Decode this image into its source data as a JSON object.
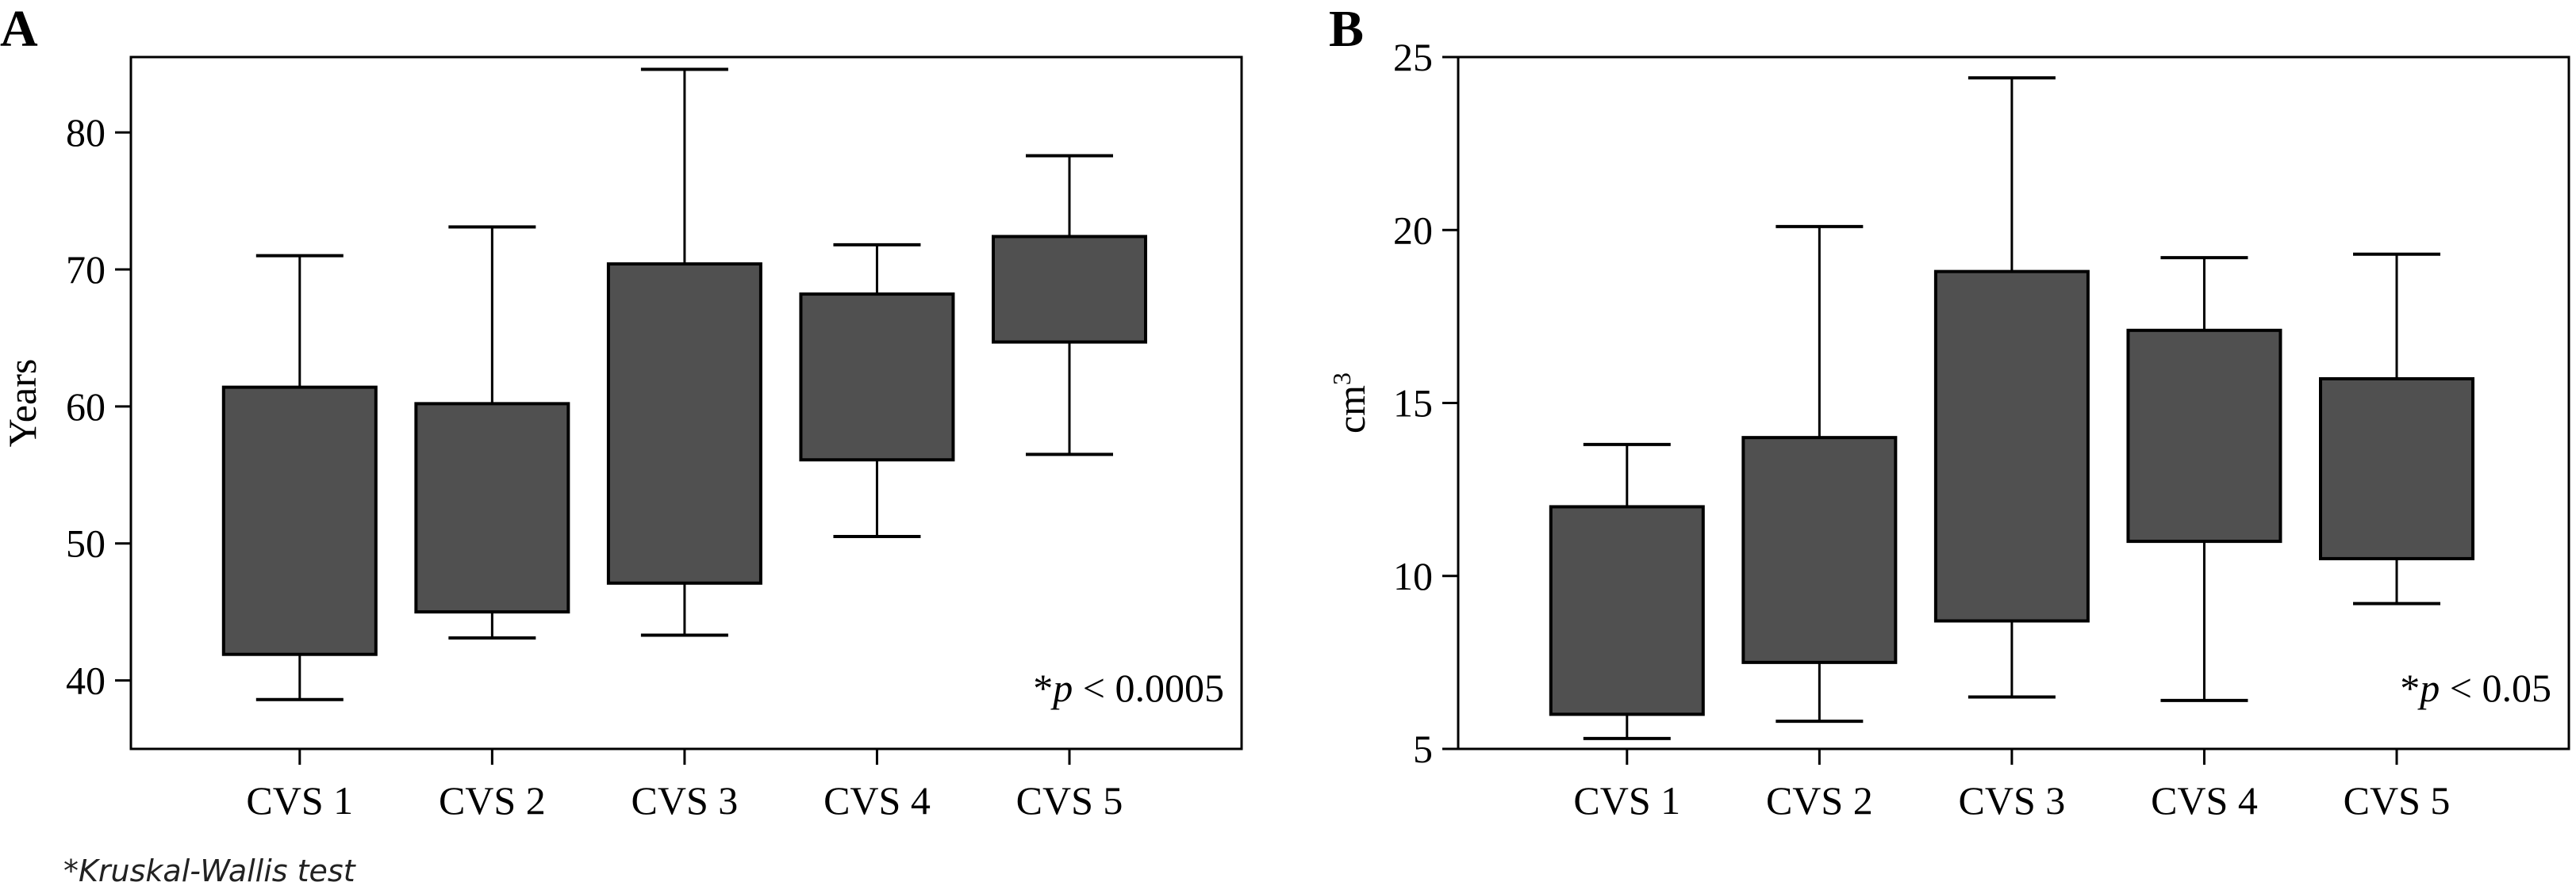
{
  "footnote": "*Kruskal-Wallis test",
  "chart_data": [
    {
      "type": "boxplot",
      "panel_label": "A",
      "title": "",
      "xlabel": "",
      "ylabel": "Years",
      "ylim": [
        35,
        85.5
      ],
      "yticks": [
        40,
        50,
        60,
        70,
        80
      ],
      "categories": [
        "CVS 1",
        "CVS 2",
        "CVS 3",
        "CVS 4",
        "CVS 5"
      ],
      "annotation": {
        "prefix": "*",
        "p_symbol": "p",
        "text": " < 0.0005",
        "position": "bottom-right"
      },
      "box_color": "#505050",
      "grid": false,
      "boxes": [
        {
          "category": "CVS 1",
          "whisker_low": 38.6,
          "q1": 41.9,
          "q3": 61.4,
          "whisker_high": 71.0
        },
        {
          "category": "CVS 2",
          "whisker_low": 43.1,
          "q1": 45.0,
          "q3": 60.2,
          "whisker_high": 73.1
        },
        {
          "category": "CVS 3",
          "whisker_low": 43.3,
          "q1": 47.1,
          "q3": 70.4,
          "whisker_high": 84.6
        },
        {
          "category": "CVS 4",
          "whisker_low": 50.5,
          "q1": 56.1,
          "q3": 68.2,
          "whisker_high": 71.8
        },
        {
          "category": "CVS 5",
          "whisker_low": 56.5,
          "q1": 64.7,
          "q3": 72.4,
          "whisker_high": 78.3
        }
      ]
    },
    {
      "type": "boxplot",
      "panel_label": "B",
      "title": "",
      "xlabel": "",
      "ylabel": "cm",
      "ylabel_superscript": "3",
      "ylim": [
        5,
        25
      ],
      "yticks": [
        5,
        10,
        15,
        20,
        25
      ],
      "categories": [
        "CVS 1",
        "CVS 2",
        "CVS 3",
        "CVS 4",
        "CVS 5"
      ],
      "annotation": {
        "prefix": "*",
        "p_symbol": "p",
        "text": " < 0.05",
        "position": "bottom-right"
      },
      "box_color": "#505050",
      "grid": false,
      "boxes": [
        {
          "category": "CVS 1",
          "whisker_low": 5.3,
          "q1": 6.0,
          "q3": 12.0,
          "whisker_high": 13.8
        },
        {
          "category": "CVS 2",
          "whisker_low": 5.8,
          "q1": 7.5,
          "q3": 14.0,
          "whisker_high": 20.1
        },
        {
          "category": "CVS 3",
          "whisker_low": 6.5,
          "q1": 8.7,
          "q3": 18.8,
          "whisker_high": 24.4
        },
        {
          "category": "CVS 4",
          "whisker_low": 6.4,
          "q1": 11.0,
          "q3": 17.1,
          "whisker_high": 19.2
        },
        {
          "category": "CVS 5",
          "whisker_low": 9.2,
          "q1": 10.5,
          "q3": 15.7,
          "whisker_high": 19.3
        }
      ]
    }
  ]
}
